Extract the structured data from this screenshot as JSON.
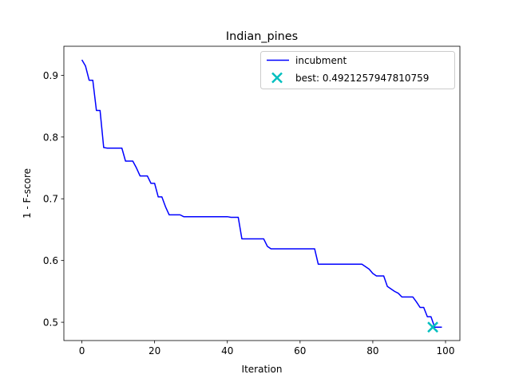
{
  "chart_data": {
    "type": "line",
    "title": "Indian_pines",
    "xlabel": "Iteration",
    "ylabel": "1 - F-score",
    "xlim": [
      -4.95,
      103.95
    ],
    "ylim": [
      0.4704,
      0.947
    ],
    "grid": false,
    "legend_position": "top-right",
    "xticks": [
      0,
      20,
      40,
      60,
      80,
      100
    ],
    "yticks": [
      0.5,
      0.6,
      0.7,
      0.8,
      0.9
    ],
    "xtick_labels": [
      "0",
      "20",
      "40",
      "60",
      "80",
      "100"
    ],
    "ytick_labels": [
      "0.5",
      "0.6",
      "0.7",
      "0.8",
      "0.9"
    ],
    "series": [
      {
        "name": "incubment",
        "color": "#0000ff",
        "x": [
          0,
          1,
          2,
          3,
          4,
          5,
          6,
          7,
          8,
          9,
          10,
          11,
          12,
          13,
          14,
          15,
          16,
          17,
          18,
          19,
          20,
          21,
          22,
          23,
          24,
          25,
          26,
          27,
          28,
          29,
          30,
          31,
          32,
          33,
          34,
          35,
          36,
          37,
          38,
          39,
          40,
          41,
          42,
          43,
          44,
          45,
          46,
          47,
          48,
          49,
          50,
          51,
          52,
          53,
          54,
          55,
          56,
          57,
          58,
          59,
          60,
          61,
          62,
          63,
          64,
          65,
          66,
          67,
          68,
          69,
          70,
          71,
          72,
          73,
          74,
          75,
          76,
          77,
          78,
          79,
          80,
          81,
          82,
          83,
          84,
          85,
          86,
          87,
          88,
          89,
          90,
          91,
          92,
          93,
          94,
          95,
          96,
          97,
          98,
          99
        ],
        "y": [
          0.925,
          0.915,
          0.892,
          0.892,
          0.843,
          0.843,
          0.783,
          0.782,
          0.782,
          0.782,
          0.782,
          0.782,
          0.761,
          0.761,
          0.761,
          0.75,
          0.737,
          0.737,
          0.737,
          0.725,
          0.725,
          0.703,
          0.703,
          0.687,
          0.674,
          0.674,
          0.674,
          0.674,
          0.671,
          0.671,
          0.671,
          0.671,
          0.671,
          0.671,
          0.671,
          0.671,
          0.671,
          0.671,
          0.671,
          0.671,
          0.671,
          0.67,
          0.67,
          0.67,
          0.635,
          0.635,
          0.635,
          0.635,
          0.635,
          0.635,
          0.635,
          0.623,
          0.619,
          0.619,
          0.619,
          0.619,
          0.619,
          0.619,
          0.619,
          0.619,
          0.619,
          0.619,
          0.619,
          0.619,
          0.619,
          0.594,
          0.594,
          0.594,
          0.594,
          0.594,
          0.594,
          0.594,
          0.594,
          0.594,
          0.594,
          0.594,
          0.594,
          0.594,
          0.59,
          0.586,
          0.579,
          0.575,
          0.575,
          0.575,
          0.558,
          0.554,
          0.55,
          0.547,
          0.541,
          0.541,
          0.541,
          0.541,
          0.533,
          0.524,
          0.524,
          0.509,
          0.509,
          0.4921,
          0.4921,
          0.4921
        ]
      }
    ],
    "best_point": {
      "name": "best: 0.4921257947810759",
      "color": "#00bfbf",
      "marker": "x",
      "x": 96.5,
      "y": 0.4921257947810759
    }
  }
}
